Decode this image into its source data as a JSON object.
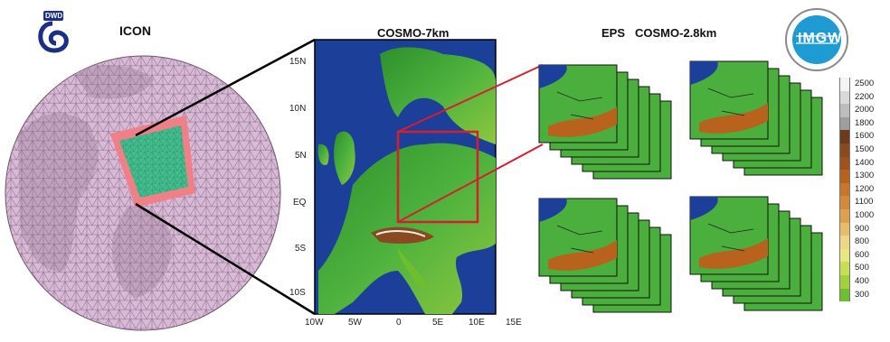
{
  "titles": {
    "icon": "ICON",
    "cosmo7": "COSMO-7km",
    "eps": "EPS",
    "cosmo28": "COSMO-2.8km"
  },
  "logos": {
    "dwd": "DWD",
    "imgw": "IMGW"
  },
  "map_axes": {
    "y_ticks": [
      "15N",
      "10N",
      "5N",
      "EQ",
      "5S",
      "10S"
    ],
    "x_ticks": [
      "10W",
      "5W",
      "0",
      "5E",
      "10E",
      "15E"
    ]
  },
  "colorbar": {
    "levels": [
      "2500",
      "2200",
      "2000",
      "1800",
      "1600",
      "1500",
      "1400",
      "1300",
      "1200",
      "1100",
      "1000",
      "900",
      "800",
      "600",
      "500",
      "400",
      "300"
    ],
    "colors": [
      "#f4f4f4",
      "#d9d9d9",
      "#bdbdbd",
      "#9e9e9e",
      "#6e3a1c",
      "#8a4a1f",
      "#a0521c",
      "#b8621e",
      "#c9762a",
      "#d48a3a",
      "#dfa04e",
      "#e8bd6a",
      "#efd686",
      "#e9e67c",
      "#c9df52",
      "#9fd23b",
      "#6dbf2e"
    ]
  },
  "colors": {
    "sea": "#1c3f9a",
    "land": "#3fae3a",
    "nest": "#d61f2e",
    "globe": "#c8a6c8"
  }
}
